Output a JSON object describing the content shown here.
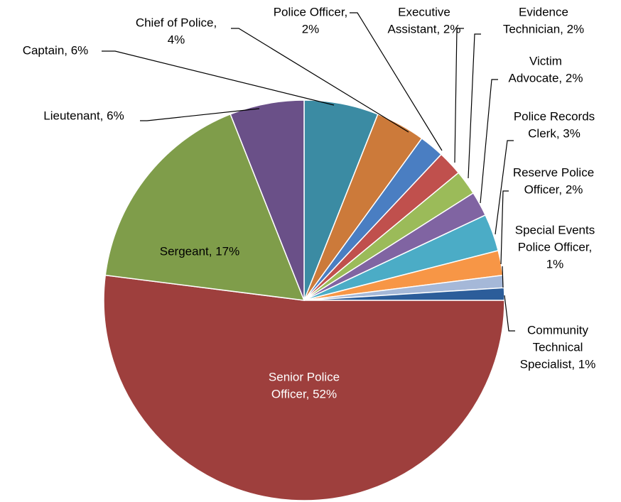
{
  "chart_data": {
    "type": "pie",
    "labels": [
      [
        "Captain, 6%"
      ],
      [
        "Chief of Police,",
        "4%"
      ],
      [
        "Police Officer,",
        "2%"
      ],
      [
        "Executive",
        "Assistant, 2%"
      ],
      [
        "Evidence",
        "Technician, 2%"
      ],
      [
        "Victim",
        "Advocate, 2%"
      ],
      [
        "Police Records",
        "Clerk, 3%"
      ],
      [
        "Reserve Police",
        "Officer, 2%"
      ],
      [
        "Special Events",
        "Police Officer,",
        "1%"
      ],
      [
        "Community",
        "Technical",
        "Specialist, 1%"
      ],
      [
        "Senior Police",
        "Officer, 52%"
      ],
      [
        "Sergeant, 17%"
      ],
      [
        "Lieutenant, 6%"
      ]
    ],
    "values": [
      6,
      4,
      2,
      2,
      2,
      2,
      3,
      2,
      1,
      1,
      52,
      17,
      6
    ],
    "colors": [
      "#3b8ba3",
      "#cc7a3a",
      "#4a7ec2",
      "#c0504d",
      "#9bbb59",
      "#8064a2",
      "#4bacc6",
      "#f79646",
      "#a5b8d8",
      "#2c5d9a",
      "#9e3f3d",
      "#7f9d4a",
      "#6a5088"
    ]
  }
}
